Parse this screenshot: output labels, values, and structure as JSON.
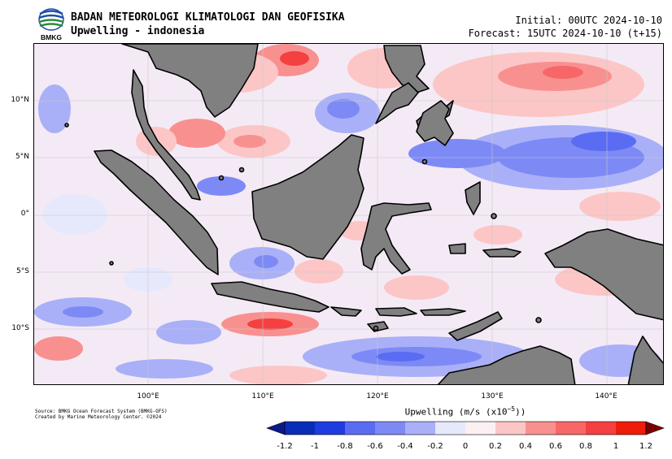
{
  "header": {
    "org_name": "BADAN METEOROLOGI KLIMATOLOGI DAN GEOFISIKA",
    "product_title": "Upwelling - indonesia",
    "logo_text": "BMKG",
    "initial": "Initial: 00UTC 2024-10-10",
    "forecast": "Forecast: 15UTC 2024-10-10 (t+15)"
  },
  "map": {
    "lat_labels": [
      "10°N",
      "5°N",
      "0°",
      "5°S",
      "10°S"
    ],
    "lon_labels": [
      "100°E",
      "110°E",
      "120°E",
      "130°E",
      "140°E"
    ],
    "land_color": "#808080",
    "ocean_color": "#f4eaf5"
  },
  "footer": {
    "source_line1": "Source: BMKG Ocean Forecast System (BMKG-OFS)",
    "source_line2": "Created by Marine Meteorology Center. ©2024"
  },
  "colorbar": {
    "title_prefix": "Upwelling (m/s (x10",
    "title_exp": "−5",
    "title_suffix": "))",
    "ticks": [
      "-1.2",
      "-1",
      "-0.8",
      "-0.6",
      "-0.4",
      "-0.2",
      "0",
      "0.2",
      "0.4",
      "0.6",
      "0.8",
      "1",
      "1.2"
    ],
    "colors": [
      "#0a2db8",
      "#1f3ce0",
      "#5a6cf2",
      "#7d8af5",
      "#a9b0f8",
      "#e6e8fc",
      "#fbf0f2",
      "#fcc6c6",
      "#f99090",
      "#f76767",
      "#f44040",
      "#ee1c08"
    ],
    "under_color": "#0b1a8a",
    "over_color": "#7a0000"
  }
}
